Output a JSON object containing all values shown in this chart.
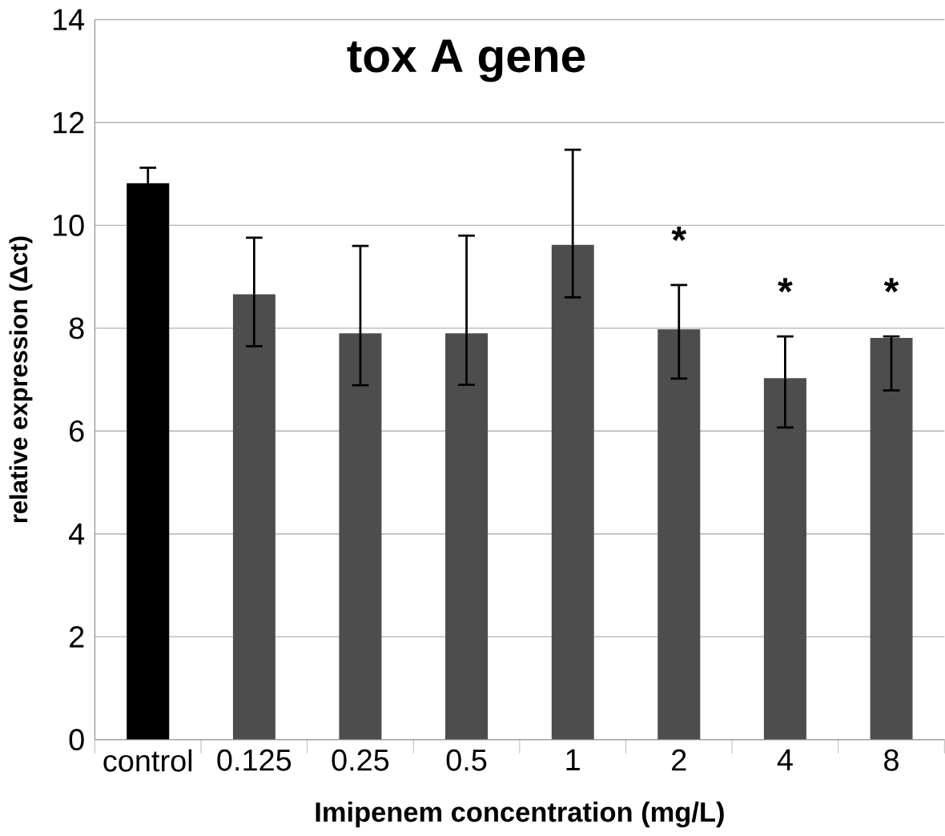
{
  "chart_data": {
    "type": "bar",
    "title": "tox A gene",
    "xlabel": "Imipenem concentration  (mg/L)",
    "ylabel": "relative expression (Δct)",
    "categories": [
      "control",
      "0.125",
      "0.25",
      "0.5",
      "1",
      "2",
      "4",
      "8"
    ],
    "values": [
      10.82,
      8.66,
      7.9,
      7.9,
      9.62,
      7.98,
      7.03,
      7.81
    ],
    "colors": [
      "#000000",
      "#4d4d4d",
      "#4d4d4d",
      "#4d4d4d",
      "#4d4d4d",
      "#4d4d4d",
      "#4d4d4d",
      "#4d4d4d"
    ],
    "errors": [
      0.3,
      [
        7.65,
        9.76
      ],
      [
        6.89,
        9.6
      ],
      [
        6.9,
        9.8
      ],
      [
        8.6,
        11.47
      ],
      [
        7.02,
        8.84
      ],
      [
        6.07,
        7.84
      ],
      [
        6.79,
        7.84
      ]
    ],
    "annotations": [
      {
        "text": "*",
        "x": "2",
        "y": 8.84
      },
      {
        "text": "*",
        "x": "4",
        "y": 7.84
      },
      {
        "text": "*",
        "x": "8",
        "y": 7.84
      }
    ],
    "ylim": [
      0,
      14
    ],
    "yticks": [
      0,
      2,
      4,
      6,
      8,
      10,
      12,
      14
    ],
    "grid": "y"
  }
}
